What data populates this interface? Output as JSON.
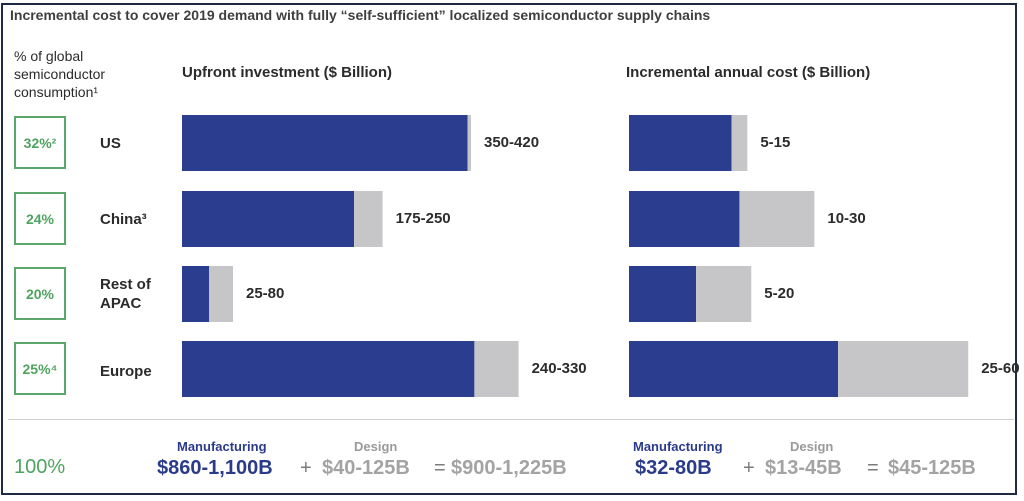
{
  "title": "Incremental cost to cover 2019 demand with fully “self-sufficient” localized semiconductor supply chains",
  "consumption_header": [
    "% of global",
    "semiconductor",
    "consumption¹"
  ],
  "total_pct": "100%",
  "colors": {
    "manufacturing": "#2b3d8f",
    "design": "#c6c6c9",
    "pct_green": "#4ea35f"
  },
  "regions": [
    {
      "name_lines": [
        "US"
      ],
      "share": "32%²",
      "upfront_label": "350-420",
      "annual_label": "5-15"
    },
    {
      "name_lines": [
        "China³"
      ],
      "share": "24%",
      "upfront_label": "175-250",
      "annual_label": "10-30"
    },
    {
      "name_lines": [
        "Rest of",
        "APAC"
      ],
      "share": "20%",
      "upfront_label": "25-80",
      "annual_label": "5-20"
    },
    {
      "name_lines": [
        "Europe"
      ],
      "share": "25%⁴",
      "upfront_label": "240-330",
      "annual_label": "25-60"
    }
  ],
  "chart_data": [
    {
      "type": "bar",
      "title": "Upfront investment ($ Billion)",
      "categories": [
        "US",
        "China",
        "Rest of APAC",
        "Europe"
      ],
      "series": [
        {
          "name": "Manufacturing",
          "values": [
            420,
            253,
            40,
            430
          ]
        },
        {
          "name": "Design",
          "values": [
            5,
            42,
            35,
            65
          ]
        }
      ],
      "ylim": [
        0,
        500
      ]
    },
    {
      "type": "bar",
      "title": "Incremental annual cost ($ Billion)",
      "categories": [
        "US",
        "China",
        "Rest of APAC",
        "Europe"
      ],
      "series": [
        {
          "name": "Manufacturing",
          "values": [
            13,
            14,
            8.5,
            26.5
          ]
        },
        {
          "name": "Design",
          "values": [
            2,
            9.5,
            7,
            16.5
          ]
        }
      ],
      "ylim": [
        0,
        45
      ]
    }
  ],
  "summary": {
    "upfront": {
      "manufacturing_label": "Manufacturing",
      "manufacturing_value": "$860-1,100B",
      "plus": "+",
      "design_label": "Design",
      "design_value": "$40-125B",
      "equals": "=",
      "total": "$900-1,225B"
    },
    "annual": {
      "manufacturing_label": "Manufacturing",
      "manufacturing_value": "$32-80B",
      "plus": "+",
      "design_label": "Design",
      "design_value": "$13-45B",
      "equals": "=",
      "total": "$45-125B"
    }
  }
}
